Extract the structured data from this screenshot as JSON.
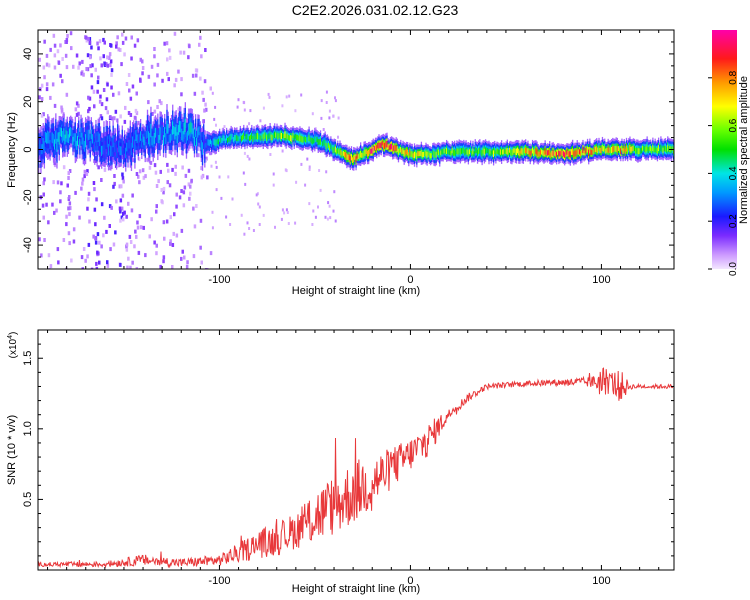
{
  "title": "C2E2.2026.031.02.12.G23",
  "chart_data": [
    {
      "type": "heatmap",
      "xlabel": "Height of straight line (km)",
      "ylabel": "Frequency (Hz)",
      "xlim": [
        -195,
        138
      ],
      "ylim": [
        -50,
        50
      ],
      "x_ticks": [
        -100,
        0,
        100
      ],
      "x_tick_labels": [
        "-100",
        "0",
        "100"
      ],
      "y_ticks": [
        -40,
        -20,
        0,
        20,
        40
      ],
      "y_tick_labels": [
        "-40",
        "-20",
        "0",
        "20",
        "40"
      ],
      "colorbar": {
        "label": "Normalized spectral amplitude",
        "range": [
          0,
          1
        ],
        "ticks": [
          0.0,
          0.2,
          0.4,
          0.6,
          0.8
        ],
        "tick_labels": [
          "0.0",
          "0.2",
          "0.4",
          "0.6",
          "0.8"
        ]
      },
      "ridge": {
        "description_points_x": [
          -195,
          -190,
          -180,
          -170,
          -160,
          -150,
          -140,
          -130,
          -120,
          -112,
          -108,
          -100,
          -90,
          -80,
          -70,
          -60,
          -50,
          -45,
          -40,
          -35,
          -30,
          -25,
          -20,
          -15,
          -10,
          -5,
          0,
          10,
          20,
          40,
          60,
          80,
          90,
          100,
          110,
          120,
          138
        ],
        "center_hz": [
          0,
          4,
          5,
          4,
          2,
          1,
          5,
          6,
          8,
          6,
          2,
          4,
          5,
          5,
          6,
          5,
          4,
          2,
          0,
          -2,
          -4,
          -2,
          0,
          2,
          1,
          -1,
          -2,
          -2,
          -1,
          -1,
          -1,
          -2,
          -1,
          0,
          0,
          0,
          0
        ],
        "peak_amplitude": [
          0.3,
          0.35,
          0.4,
          0.35,
          0.3,
          0.3,
          0.35,
          0.35,
          0.4,
          0.4,
          0.3,
          0.45,
          0.5,
          0.55,
          0.6,
          0.65,
          0.5,
          0.55,
          0.6,
          0.75,
          0.9,
          0.7,
          0.95,
          0.9,
          0.95,
          0.7,
          0.75,
          0.6,
          0.6,
          0.6,
          0.75,
          0.95,
          0.85,
          0.75,
          0.8,
          0.6,
          0.6
        ]
      }
    },
    {
      "type": "line",
      "xlabel": "Height of straight line (km)",
      "ylabel": "SNR (10 * v/v)",
      "y_scale_label": "(x10",
      "y_scale_exp": "4",
      "y_scale_close": ")",
      "xlim": [
        -195,
        138
      ],
      "ylim": [
        0,
        1.7
      ],
      "x_ticks": [
        -100,
        0,
        100
      ],
      "x_tick_labels": [
        "-100",
        "0",
        "100"
      ],
      "y_ticks": [
        0.5,
        1.0,
        1.5
      ],
      "y_tick_labels": [
        "0.5",
        "1.0",
        "1.5"
      ],
      "color": "#e8383a",
      "trend_x": [
        -195,
        -160,
        -140,
        -120,
        -100,
        -90,
        -80,
        -70,
        -60,
        -50,
        -40,
        -30,
        -20,
        -10,
        0,
        10,
        15,
        20,
        30,
        40,
        60,
        80,
        95,
        100,
        105,
        110,
        115,
        120,
        138
      ],
      "trend_y": [
        0.04,
        0.04,
        0.07,
        0.05,
        0.07,
        0.12,
        0.18,
        0.22,
        0.28,
        0.38,
        0.45,
        0.55,
        0.62,
        0.72,
        0.82,
        0.93,
        1.02,
        1.1,
        1.22,
        1.3,
        1.32,
        1.33,
        1.33,
        1.34,
        1.33,
        1.3,
        1.3,
        1.3,
        1.3
      ],
      "noise_amp": [
        0.015,
        0.02,
        0.04,
        0.03,
        0.04,
        0.07,
        0.1,
        0.12,
        0.13,
        0.2,
        0.22,
        0.23,
        0.2,
        0.15,
        0.12,
        0.12,
        0.08,
        0.04,
        0.03,
        0.02,
        0.02,
        0.025,
        0.04,
        0.12,
        0.08,
        0.12,
        0.02,
        0.015,
        0.015
      ]
    }
  ]
}
